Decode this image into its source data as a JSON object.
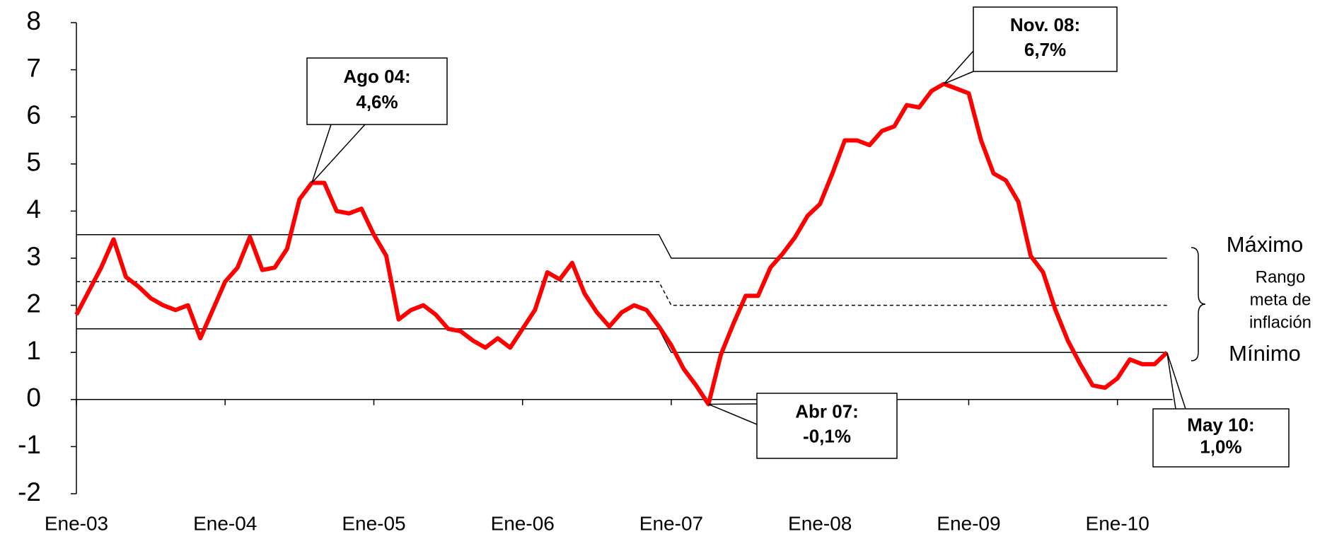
{
  "chart_data": {
    "type": "line",
    "categories": [
      "Ene-03",
      null,
      null,
      null,
      null,
      null,
      null,
      null,
      null,
      null,
      null,
      null,
      "Ene-04",
      null,
      null,
      null,
      null,
      null,
      null,
      null,
      null,
      null,
      null,
      null,
      "Ene-05",
      null,
      null,
      null,
      null,
      null,
      null,
      null,
      null,
      null,
      null,
      null,
      "Ene-06",
      null,
      null,
      null,
      null,
      null,
      null,
      null,
      null,
      null,
      null,
      null,
      "Ene-07",
      null,
      null,
      null,
      null,
      null,
      null,
      null,
      null,
      null,
      null,
      null,
      "Ene-08",
      null,
      null,
      null,
      null,
      null,
      null,
      null,
      null,
      null,
      null,
      null,
      "Ene-09",
      null,
      null,
      null,
      null,
      null,
      null,
      null,
      null,
      null,
      null,
      null,
      "Ene-10",
      null,
      null,
      null,
      null
    ],
    "ylim": [
      -2,
      8
    ],
    "yticks": [
      -2,
      -1,
      0,
      1,
      2,
      3,
      4,
      5,
      6,
      7,
      8
    ],
    "series": [
      {
        "color": "#ff0000",
        "values": [
          1.8,
          2.3,
          2.8,
          3.4,
          2.6,
          2.4,
          2.15,
          2.0,
          1.9,
          2.0,
          1.3,
          1.9,
          2.5,
          2.8,
          3.45,
          2.75,
          2.8,
          3.2,
          4.25,
          4.6,
          4.6,
          4.0,
          3.95,
          4.05,
          3.5,
          3.05,
          1.7,
          1.9,
          2.0,
          1.8,
          1.5,
          1.45,
          1.25,
          1.1,
          1.3,
          1.1,
          1.5,
          1.9,
          2.7,
          2.55,
          2.9,
          2.25,
          1.85,
          1.55,
          1.85,
          2.0,
          1.9,
          1.55,
          1.15,
          0.65,
          0.3,
          -0.1,
          0.95,
          1.6,
          2.2,
          2.2,
          2.8,
          3.1,
          3.45,
          3.9,
          4.15,
          4.8,
          5.5,
          5.5,
          5.4,
          5.7,
          5.8,
          6.25,
          6.2,
          6.55,
          6.7,
          6.6,
          6.5,
          5.5,
          4.8,
          4.65,
          4.2,
          3.05,
          2.7,
          1.9,
          1.25,
          0.75,
          0.3,
          0.25,
          0.45,
          0.85,
          0.75,
          0.75,
          1.0
        ],
        "point_labels": [
          null,
          null,
          null,
          null,
          null,
          null,
          null,
          null,
          null,
          null,
          null,
          null,
          null,
          null,
          null,
          null,
          null,
          null,
          null,
          "Ago 04:",
          null,
          null,
          null,
          null,
          null,
          null,
          null,
          null,
          null,
          null,
          null,
          null,
          null,
          null,
          null,
          null,
          null,
          null,
          null,
          null,
          null,
          null,
          null,
          null,
          null,
          null,
          null,
          null,
          null,
          null,
          null,
          "Abr 07:",
          null,
          null,
          null,
          null,
          null,
          null,
          null,
          null,
          null,
          null,
          null,
          null,
          null,
          null,
          null,
          null,
          null,
          null,
          "Nov. 08:",
          null,
          null,
          null,
          null,
          null,
          null,
          null,
          null,
          null,
          null,
          null,
          null,
          null,
          null,
          null,
          null,
          null,
          "May 10:"
        ],
        "value_labels": [
          null,
          null,
          null,
          null,
          null,
          null,
          null,
          null,
          null,
          null,
          null,
          null,
          null,
          null,
          null,
          null,
          null,
          null,
          null,
          "4,6%",
          null,
          null,
          null,
          null,
          null,
          null,
          null,
          null,
          null,
          null,
          null,
          null,
          null,
          null,
          null,
          null,
          null,
          null,
          null,
          null,
          null,
          null,
          null,
          null,
          null,
          null,
          null,
          null,
          null,
          null,
          null,
          "-0,1%",
          null,
          null,
          null,
          null,
          null,
          null,
          null,
          null,
          null,
          null,
          null,
          null,
          null,
          null,
          null,
          null,
          null,
          null,
          "6,7%",
          null,
          null,
          null,
          null,
          null,
          null,
          null,
          null,
          null,
          null,
          null,
          null,
          null,
          null,
          null,
          null,
          null,
          "1,0%"
        ]
      },
      {
        "name": "Máximo",
        "color": "#000000",
        "values": [
          3.5,
          3.5,
          3.5,
          3.5,
          3.5,
          3.5,
          3.5,
          3.5,
          3.5,
          3.5,
          3.5,
          3.5,
          3.5,
          3.5,
          3.5,
          3.5,
          3.5,
          3.5,
          3.5,
          3.5,
          3.5,
          3.5,
          3.5,
          3.5,
          3.5,
          3.5,
          3.5,
          3.5,
          3.5,
          3.5,
          3.5,
          3.5,
          3.5,
          3.5,
          3.5,
          3.5,
          3.5,
          3.5,
          3.5,
          3.5,
          3.5,
          3.5,
          3.5,
          3.5,
          3.5,
          3.5,
          3.5,
          3.5,
          3,
          3,
          3,
          3,
          3,
          3,
          3,
          3,
          3,
          3,
          3,
          3,
          3,
          3,
          3,
          3,
          3,
          3,
          3,
          3,
          3,
          3,
          3,
          3,
          3,
          3,
          3,
          3,
          3,
          3,
          3,
          3,
          3,
          3,
          3,
          3,
          3,
          3,
          3,
          3,
          3
        ]
      },
      {
        "color": "#000000",
        "dashed": true,
        "values": [
          2.5,
          2.5,
          2.5,
          2.5,
          2.5,
          2.5,
          2.5,
          2.5,
          2.5,
          2.5,
          2.5,
          2.5,
          2.5,
          2.5,
          2.5,
          2.5,
          2.5,
          2.5,
          2.5,
          2.5,
          2.5,
          2.5,
          2.5,
          2.5,
          2.5,
          2.5,
          2.5,
          2.5,
          2.5,
          2.5,
          2.5,
          2.5,
          2.5,
          2.5,
          2.5,
          2.5,
          2.5,
          2.5,
          2.5,
          2.5,
          2.5,
          2.5,
          2.5,
          2.5,
          2.5,
          2.5,
          2.5,
          2.5,
          2,
          2,
          2,
          2,
          2,
          2,
          2,
          2,
          2,
          2,
          2,
          2,
          2,
          2,
          2,
          2,
          2,
          2,
          2,
          2,
          2,
          2,
          2,
          2,
          2,
          2,
          2,
          2,
          2,
          2,
          2,
          2,
          2,
          2,
          2,
          2,
          2,
          2,
          2,
          2,
          2
        ]
      },
      {
        "name": "Mínimo",
        "color": "#000000",
        "values": [
          1.5,
          1.5,
          1.5,
          1.5,
          1.5,
          1.5,
          1.5,
          1.5,
          1.5,
          1.5,
          1.5,
          1.5,
          1.5,
          1.5,
          1.5,
          1.5,
          1.5,
          1.5,
          1.5,
          1.5,
          1.5,
          1.5,
          1.5,
          1.5,
          1.5,
          1.5,
          1.5,
          1.5,
          1.5,
          1.5,
          1.5,
          1.5,
          1.5,
          1.5,
          1.5,
          1.5,
          1.5,
          1.5,
          1.5,
          1.5,
          1.5,
          1.5,
          1.5,
          1.5,
          1.5,
          1.5,
          1.5,
          1.5,
          1,
          1,
          1,
          1,
          1,
          1,
          1,
          1,
          1,
          1,
          1,
          1,
          1,
          1,
          1,
          1,
          1,
          1,
          1,
          1,
          1,
          1,
          1,
          1,
          1,
          1,
          1,
          1,
          1,
          1,
          1,
          1,
          1,
          1,
          1,
          1,
          1,
          1,
          1,
          1,
          1
        ]
      }
    ],
    "range_label": [
      "Rango",
      "meta de",
      "inflación"
    ]
  }
}
